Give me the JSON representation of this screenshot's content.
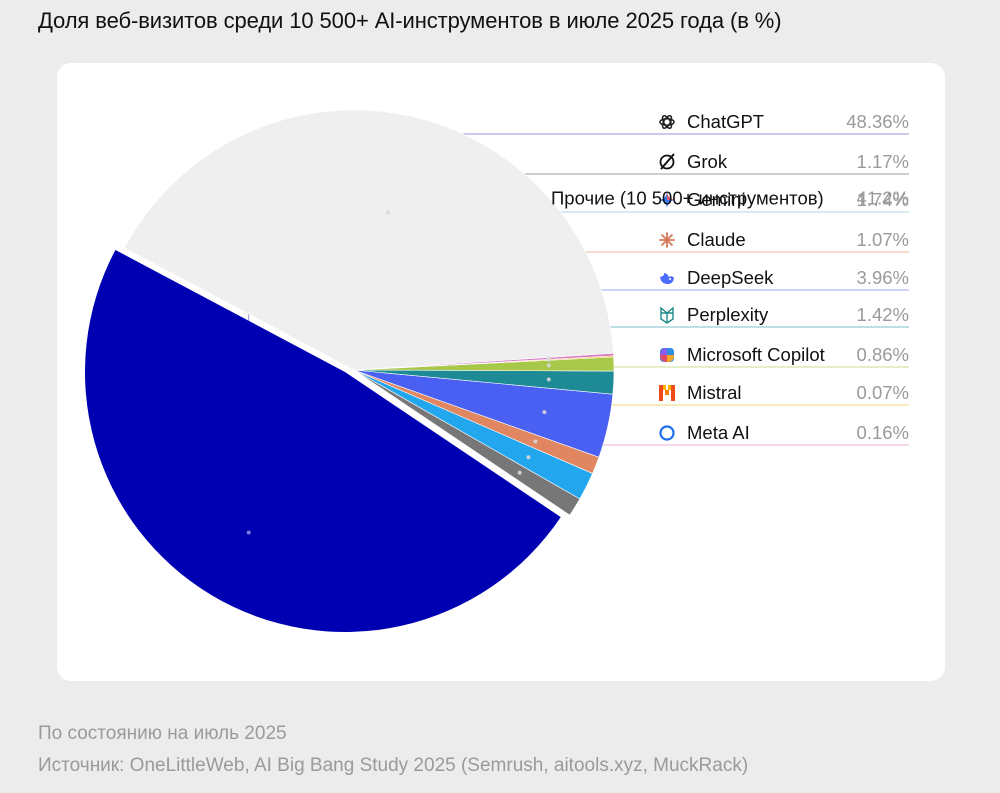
{
  "title": "Доля веб-визитов среди 10 500+ AI-инструментов в июле 2025 года (в %)",
  "footer": {
    "date_note": "По состоянию на июль 2025",
    "source": "Источник: OneLittleWeb, AI Big Bang Study 2025 (Semrush, aitools.xyz, MuckRack)"
  },
  "chart_data": {
    "type": "pie",
    "title": "Доля веб-визитов среди 10 500+ AI-инструментов в июле 2025 года (в %)",
    "unit": "%",
    "slices": [
      {
        "name": "ChatGPT",
        "value": 48.36,
        "label": "48.36%",
        "color": "#0000b3",
        "line_color": "#9a9ad6",
        "icon": "chatgpt-icon",
        "exploded": true
      },
      {
        "name": "Grok",
        "value": 1.17,
        "label": "1.17%",
        "color": "#777777",
        "line_color": "#9e9e9e",
        "icon": "grok-icon"
      },
      {
        "name": "Gemini",
        "value": 1.74,
        "label": "1.74%",
        "color": "#22a7ee",
        "line_color": "#7fd0f6",
        "icon": "gemini-icon"
      },
      {
        "name": "Claude",
        "value": 1.07,
        "label": "1.07%",
        "color": "#e08660",
        "line_color": "#efb9a1",
        "icon": "claude-icon"
      },
      {
        "name": "DeepSeek",
        "value": 3.96,
        "label": "3.96%",
        "color": "#4a60f2",
        "line_color": "#9ea9f7",
        "icon": "deepseek-icon"
      },
      {
        "name": "Perplexity",
        "value": 1.42,
        "label": "1.42%",
        "color": "#1d8a96",
        "line_color": "#7ec2ca",
        "icon": "perplexity-icon"
      },
      {
        "name": "Microsoft Copilot",
        "value": 0.86,
        "label": "0.86%",
        "color": "#a8c84a",
        "line_color": "#c9dd92",
        "icon": "copilot-icon"
      },
      {
        "name": "Mistral",
        "value": 0.07,
        "label": "0.07%",
        "color": "#f5b000",
        "line_color": "#f2d37a",
        "icon": "mistral-icon"
      },
      {
        "name": "Meta AI",
        "value": 0.16,
        "label": "0.16%",
        "color": "#d877c4",
        "line_color": "#e8b0dc",
        "icon": "meta-ai-icon"
      },
      {
        "name": "Прочие (10 500+ инструментов)",
        "value": 41.2,
        "label": "41.2%",
        "color": "#efefef",
        "line_color": "#e4e4e4",
        "icon": ""
      }
    ]
  }
}
